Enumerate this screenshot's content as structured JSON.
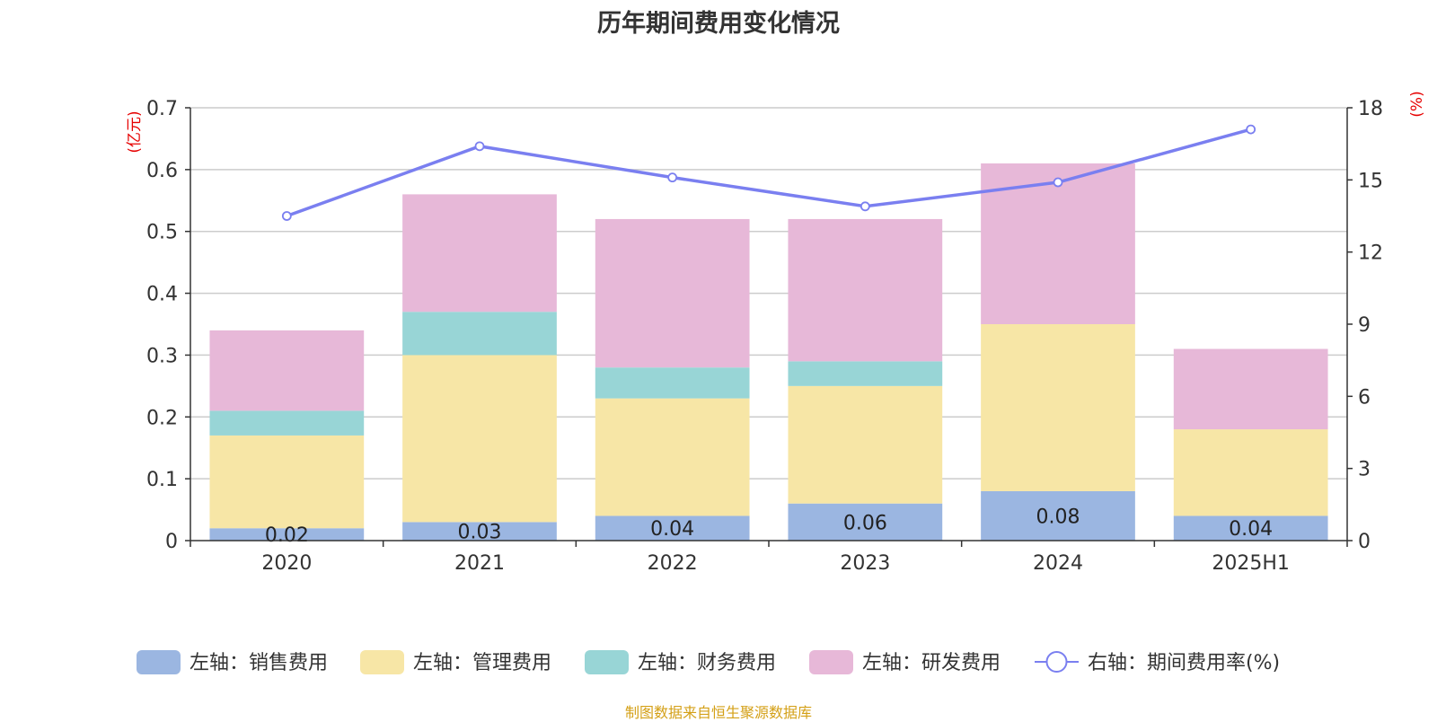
{
  "chart_data": {
    "type": "bar",
    "title": "历年期间费用变化情况",
    "categories": [
      "2020",
      "2021",
      "2022",
      "2023",
      "2024",
      "2025H1"
    ],
    "left_axis": {
      "unit": "(亿元)",
      "ylim": [
        0,
        0.7
      ],
      "ticks": [
        "0",
        "0.1",
        "0.2",
        "0.3",
        "0.4",
        "0.5",
        "0.6",
        "0.7"
      ]
    },
    "right_axis": {
      "unit": "(%)",
      "ylim": [
        0,
        18
      ],
      "ticks": [
        "0",
        "3",
        "6",
        "9",
        "12",
        "15",
        "18"
      ]
    },
    "stacked_series": [
      {
        "name": "左轴：销售费用",
        "color": "#9bb6e1",
        "values": [
          0.02,
          0.03,
          0.04,
          0.06,
          0.08,
          0.04
        ],
        "labels": [
          "0.02",
          "0.03",
          "0.04",
          "0.06",
          "0.08",
          "0.04"
        ]
      },
      {
        "name": "左轴：管理费用",
        "color": "#f7e6a6",
        "values": [
          0.15,
          0.27,
          0.19,
          0.19,
          0.27,
          0.14
        ]
      },
      {
        "name": "左轴：财务费用",
        "color": "#98d5d6",
        "values": [
          0.04,
          0.07,
          0.05,
          0.04,
          0.0,
          0.0
        ]
      },
      {
        "name": "左轴：研发费用",
        "color": "#e7b8d8",
        "values": [
          0.13,
          0.19,
          0.24,
          0.23,
          0.26,
          0.13
        ]
      }
    ],
    "line_series": {
      "name": "右轴：期间费用率(%)",
      "color": "#7a7ff0",
      "values": [
        13.5,
        16.4,
        15.1,
        13.9,
        14.9,
        17.1
      ]
    },
    "grid": true,
    "legend_position": "bottom",
    "unit_color": "#e60000"
  },
  "source_note": "制图数据来自恒生聚源数据库"
}
